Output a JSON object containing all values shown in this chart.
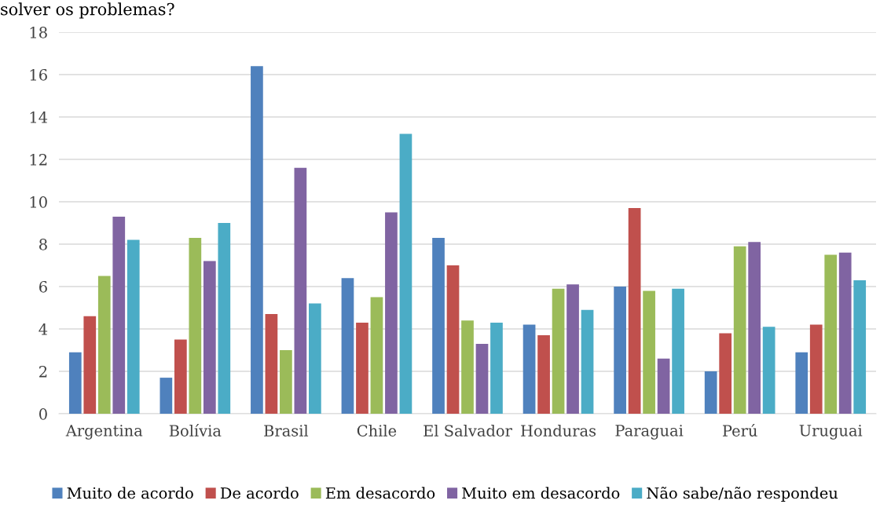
{
  "chart_data": {
    "type": "bar",
    "title": "solver os problemas?",
    "categories": [
      "Argentina",
      "Bolívia",
      "Brasil",
      "Chile",
      "El Salvador",
      "Honduras",
      "Paraguai",
      "Perú",
      "Uruguai"
    ],
    "series": [
      {
        "name": "Muito de acordo",
        "color": "#4f81bd",
        "values": [
          2.9,
          1.7,
          16.4,
          6.4,
          8.3,
          4.2,
          6.0,
          2.0,
          2.9
        ]
      },
      {
        "name": "De acordo",
        "color": "#c0504d",
        "values": [
          4.6,
          3.5,
          4.7,
          4.3,
          7.0,
          3.7,
          9.7,
          3.8,
          4.2
        ]
      },
      {
        "name": "Em desacordo",
        "color": "#9bbb59",
        "values": [
          6.5,
          8.3,
          3.0,
          5.5,
          4.4,
          5.9,
          5.8,
          7.9,
          7.5
        ]
      },
      {
        "name": "Muito em desacordo",
        "color": "#8064a2",
        "values": [
          9.3,
          7.2,
          11.6,
          9.5,
          3.3,
          6.1,
          2.6,
          8.1,
          7.6
        ]
      },
      {
        "name": "Não sabe/não respondeu",
        "color": "#4bacc6",
        "values": [
          8.2,
          9.0,
          5.2,
          13.2,
          4.3,
          4.9,
          5.9,
          4.1,
          6.3
        ]
      }
    ],
    "ylim": [
      0,
      18
    ],
    "yticks": [
      0,
      2,
      4,
      6,
      8,
      10,
      12,
      14,
      16,
      18
    ],
    "grid": "y",
    "legend": "bottom"
  }
}
